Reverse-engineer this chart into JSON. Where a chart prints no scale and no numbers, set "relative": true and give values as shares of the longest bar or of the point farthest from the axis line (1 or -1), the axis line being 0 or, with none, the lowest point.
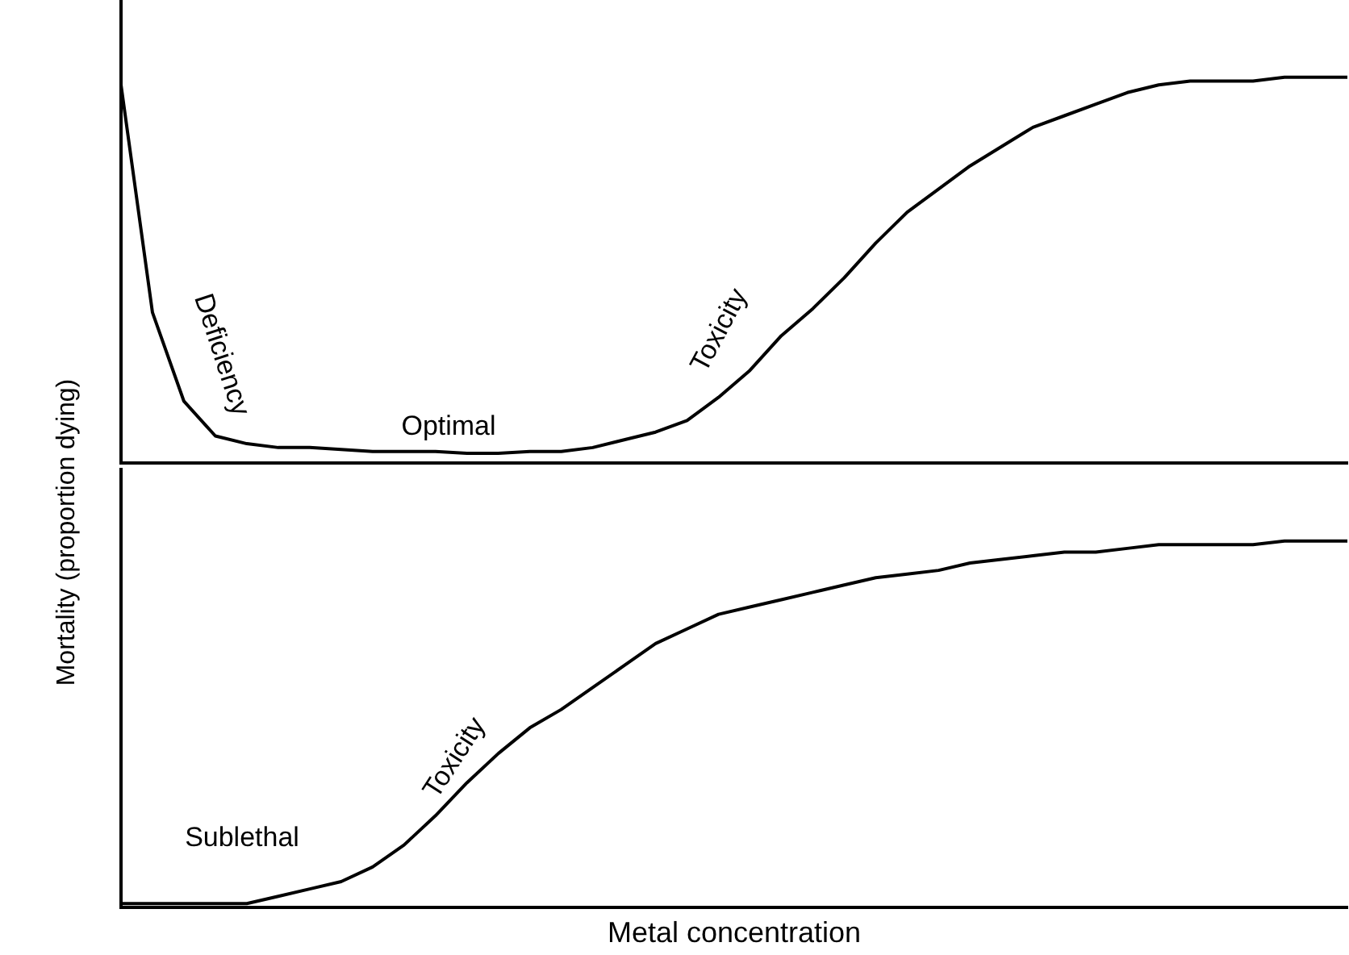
{
  "chart_data": [
    {
      "type": "line",
      "ylabel": "Mortality (proportion dying)",
      "categories": [
        null,
        null,
        null,
        null,
        null,
        null,
        null,
        null,
        null,
        null,
        null,
        null,
        null,
        null,
        null,
        null,
        null,
        null,
        null,
        null,
        null,
        null,
        null,
        null,
        null,
        null,
        null,
        null,
        null,
        null,
        null,
        null,
        null,
        null,
        null,
        null,
        null,
        null,
        null,
        null
      ],
      "relative": true,
      "tick_labels": false,
      "marker": "none",
      "color": "#000000",
      "values": [
        0.98,
        0.39,
        0.16,
        0.07,
        0.05,
        0.04,
        0.04,
        0.035,
        0.03,
        0.03,
        0.03,
        0.025,
        0.025,
        0.03,
        0.03,
        0.04,
        0.06,
        0.08,
        0.11,
        0.17,
        0.24,
        0.33,
        0.4,
        0.48,
        0.57,
        0.65,
        0.71,
        0.77,
        0.82,
        0.87,
        0.9,
        0.93,
        0.96,
        0.98,
        0.99,
        0.99,
        0.99,
        1.0,
        1.0,
        1.0
      ],
      "annotations": [
        "Deficiency",
        "Optimal",
        "Toxicity"
      ]
    },
    {
      "type": "line",
      "xlabel": "Metal concentration",
      "categories": [
        null,
        null,
        null,
        null,
        null,
        null,
        null,
        null,
        null,
        null,
        null,
        null,
        null,
        null,
        null,
        null,
        null,
        null,
        null,
        null,
        null,
        null,
        null,
        null,
        null,
        null,
        null,
        null,
        null,
        null,
        null,
        null,
        null,
        null,
        null,
        null,
        null,
        null,
        null,
        null
      ],
      "relative": true,
      "tick_labels": false,
      "marker": "none",
      "color": "#000000",
      "values": [
        0.01,
        0.01,
        0.01,
        0.01,
        0.01,
        0.03,
        0.05,
        0.07,
        0.11,
        0.17,
        0.25,
        0.34,
        0.42,
        0.49,
        0.54,
        0.6,
        0.66,
        0.72,
        0.76,
        0.8,
        0.82,
        0.84,
        0.86,
        0.88,
        0.9,
        0.91,
        0.92,
        0.94,
        0.95,
        0.96,
        0.97,
        0.97,
        0.98,
        0.99,
        0.99,
        0.99,
        0.99,
        1.0,
        1.0,
        1.0
      ],
      "annotations": [
        "Sublethal",
        "Toxicity"
      ]
    }
  ]
}
